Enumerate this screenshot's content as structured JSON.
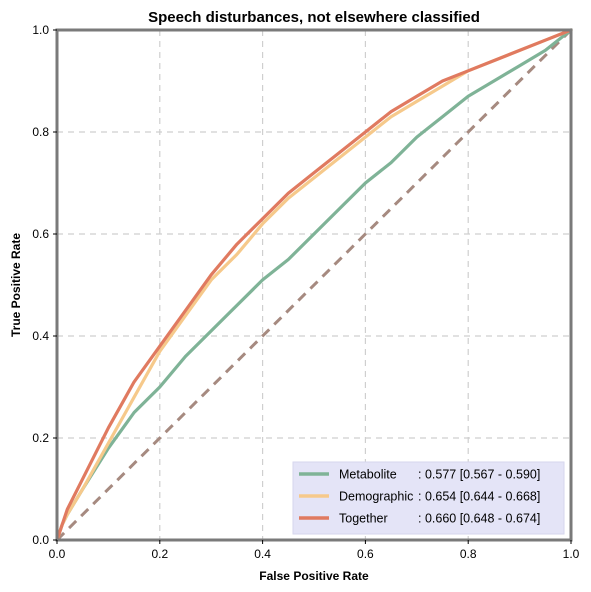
{
  "chart_data": {
    "type": "line",
    "title": "Speech disturbances, not elsewhere classified",
    "xlabel": "False Positive Rate",
    "ylabel": "True Positive Rate",
    "xlim": [
      0,
      1
    ],
    "ylim": [
      0,
      1
    ],
    "xticks": [
      "0.0",
      "0.2",
      "0.4",
      "0.6",
      "0.8",
      "1.0"
    ],
    "yticks": [
      "0.0",
      "0.2",
      "0.4",
      "0.6",
      "0.8",
      "1.0"
    ],
    "grid": true,
    "legend_position": "lower-right",
    "diagonal": {
      "x": [
        0,
        1
      ],
      "y": [
        0,
        1
      ],
      "color": "#a68a80",
      "style": "dashed"
    },
    "series": [
      {
        "name": "Metabolite",
        "label_name": "Metabolite",
        "label_auc": ": 0.577 [0.567 - 0.590]",
        "color": "#7fb397",
        "x": [
          0,
          0.01,
          0.02,
          0.05,
          0.1,
          0.15,
          0.2,
          0.25,
          0.3,
          0.35,
          0.4,
          0.45,
          0.5,
          0.55,
          0.6,
          0.65,
          0.7,
          0.75,
          0.8,
          0.85,
          0.9,
          0.95,
          1.0
        ],
        "y": [
          0,
          0.03,
          0.05,
          0.1,
          0.18,
          0.25,
          0.3,
          0.36,
          0.41,
          0.46,
          0.51,
          0.55,
          0.6,
          0.65,
          0.7,
          0.74,
          0.79,
          0.83,
          0.87,
          0.9,
          0.93,
          0.96,
          1.0
        ]
      },
      {
        "name": "Demographic",
        "label_name": "Demographic",
        "label_auc": ": 0.654 [0.644 - 0.668]",
        "color": "#f6c98b",
        "x": [
          0,
          0.01,
          0.02,
          0.05,
          0.1,
          0.15,
          0.2,
          0.25,
          0.3,
          0.35,
          0.4,
          0.45,
          0.5,
          0.55,
          0.6,
          0.65,
          0.7,
          0.75,
          0.8,
          0.85,
          0.9,
          0.95,
          1.0
        ],
        "y": [
          0,
          0.03,
          0.05,
          0.1,
          0.19,
          0.28,
          0.37,
          0.44,
          0.51,
          0.56,
          0.62,
          0.67,
          0.71,
          0.75,
          0.79,
          0.83,
          0.86,
          0.89,
          0.92,
          0.94,
          0.96,
          0.98,
          1.0
        ]
      },
      {
        "name": "Together",
        "label_name": "Together",
        "label_auc": ": 0.660 [0.648 - 0.674]",
        "color": "#e07a60",
        "x": [
          0,
          0.01,
          0.02,
          0.05,
          0.1,
          0.15,
          0.2,
          0.25,
          0.3,
          0.35,
          0.4,
          0.45,
          0.5,
          0.55,
          0.6,
          0.65,
          0.7,
          0.75,
          0.8,
          0.85,
          0.9,
          0.95,
          1.0
        ],
        "y": [
          0,
          0.03,
          0.06,
          0.12,
          0.22,
          0.31,
          0.38,
          0.45,
          0.52,
          0.58,
          0.63,
          0.68,
          0.72,
          0.76,
          0.8,
          0.84,
          0.87,
          0.9,
          0.92,
          0.94,
          0.96,
          0.98,
          1.0
        ]
      }
    ]
  }
}
